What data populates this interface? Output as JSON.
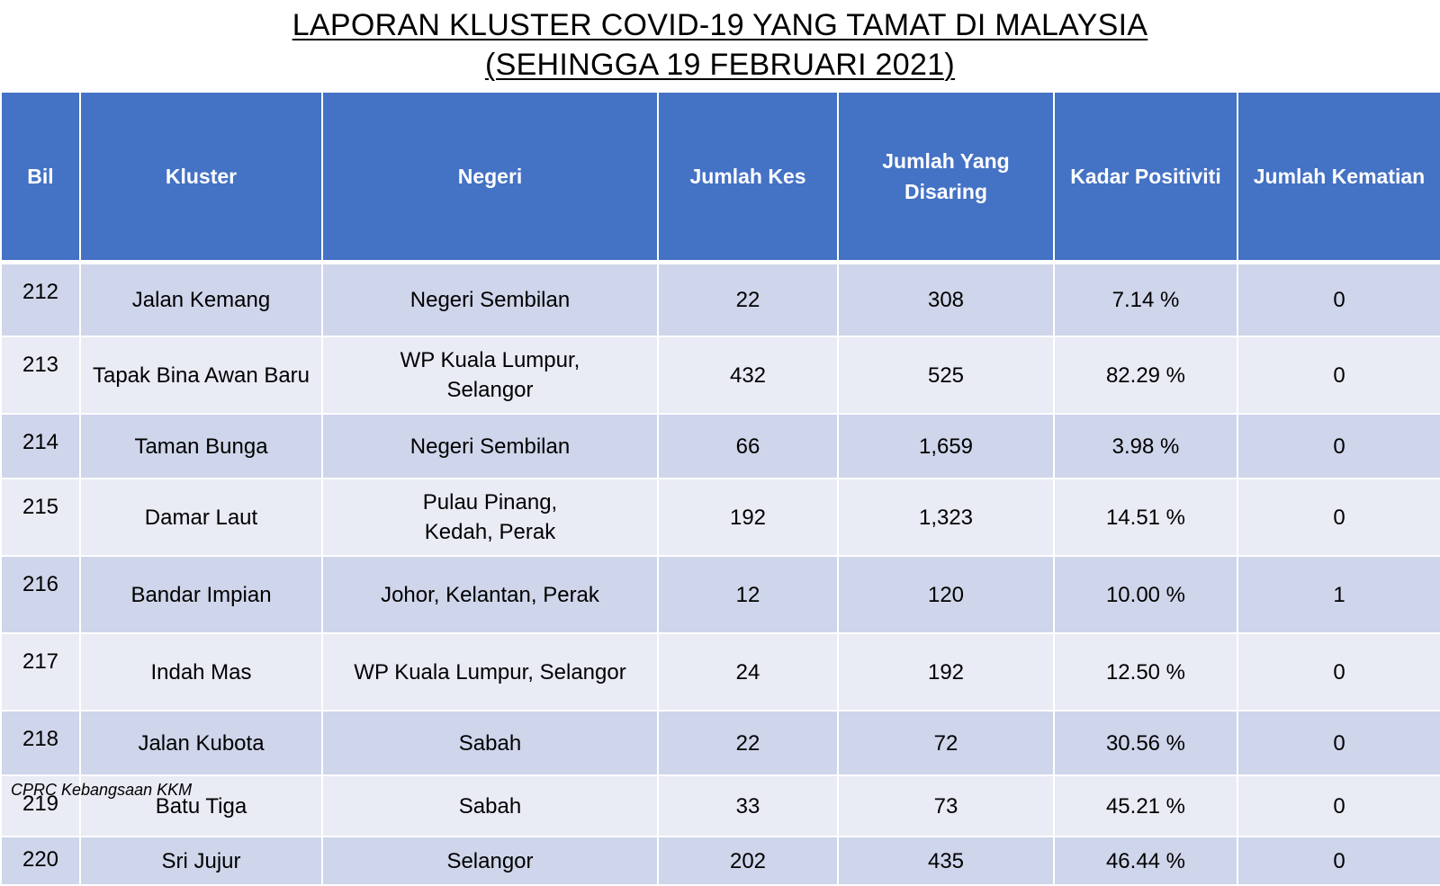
{
  "title": {
    "line1": "LAPORAN KLUSTER COVID-19 YANG TAMAT DI MALAYSIA",
    "line2": "(SEHINGGA  19 FEBRUARI 2021)"
  },
  "table": {
    "headers": {
      "bil": "Bil",
      "kluster": "Kluster",
      "negeri": "Negeri",
      "jumlah_kes": "Jumlah Kes",
      "jumlah_disaring_1": "Jumlah Yang",
      "jumlah_disaring_2": "Disaring",
      "kadar_positiviti": "Kadar Positiviti",
      "jumlah_kematian": "Jumlah Kematian"
    },
    "rows": [
      {
        "bil": "212",
        "kluster": "Jalan Kemang",
        "negeri_1": "Negeri Sembilan",
        "negeri_2": "",
        "kes": "22",
        "disaring": "308",
        "positiviti": "7.14 %",
        "kematian": "0"
      },
      {
        "bil": "213",
        "kluster": "Tapak Bina Awan Baru",
        "negeri_1": "WP Kuala Lumpur,",
        "negeri_2": "Selangor",
        "kes": "432",
        "disaring": "525",
        "positiviti": "82.29 %",
        "kematian": "0"
      },
      {
        "bil": "214",
        "kluster": "Taman Bunga",
        "negeri_1": "Negeri Sembilan",
        "negeri_2": "",
        "kes": "66",
        "disaring": "1,659",
        "positiviti": "3.98 %",
        "kematian": "0"
      },
      {
        "bil": "215",
        "kluster": "Damar Laut",
        "negeri_1": "Pulau Pinang,",
        "negeri_2": "Kedah, Perak",
        "kes": "192",
        "disaring": "1,323",
        "positiviti": "14.51 %",
        "kematian": "0"
      },
      {
        "bil": "216",
        "kluster": "Bandar Impian",
        "negeri_1": "Johor, Kelantan, Perak",
        "negeri_2": "",
        "kes": "12",
        "disaring": "120",
        "positiviti": "10.00 %",
        "kematian": "1"
      },
      {
        "bil": "217",
        "kluster": "Indah Mas",
        "negeri_1": "WP Kuala Lumpur, Selangor",
        "negeri_2": "",
        "kes": "24",
        "disaring": "192",
        "positiviti": "12.50 %",
        "kematian": "0"
      },
      {
        "bil": "218",
        "kluster": "Jalan Kubota",
        "negeri_1": "Sabah",
        "negeri_2": "",
        "kes": "22",
        "disaring": "72",
        "positiviti": "30.56 %",
        "kematian": "0"
      },
      {
        "bil": "219",
        "kluster": "Batu Tiga",
        "negeri_1": "Sabah",
        "negeri_2": "",
        "kes": "33",
        "disaring": "73",
        "positiviti": "45.21 %",
        "kematian": "0"
      },
      {
        "bil": "220",
        "kluster": "Sri Jujur",
        "negeri_1": "Selangor",
        "negeri_2": "",
        "kes": "202",
        "disaring": "435",
        "positiviti": "46.44 %",
        "kematian": "0"
      }
    ]
  },
  "source": "CPRC Kebangsaan KKM",
  "colors": {
    "header_bg": "#4472c4",
    "row_odd": "#cfd5ea",
    "row_even": "#e9ebf5"
  }
}
